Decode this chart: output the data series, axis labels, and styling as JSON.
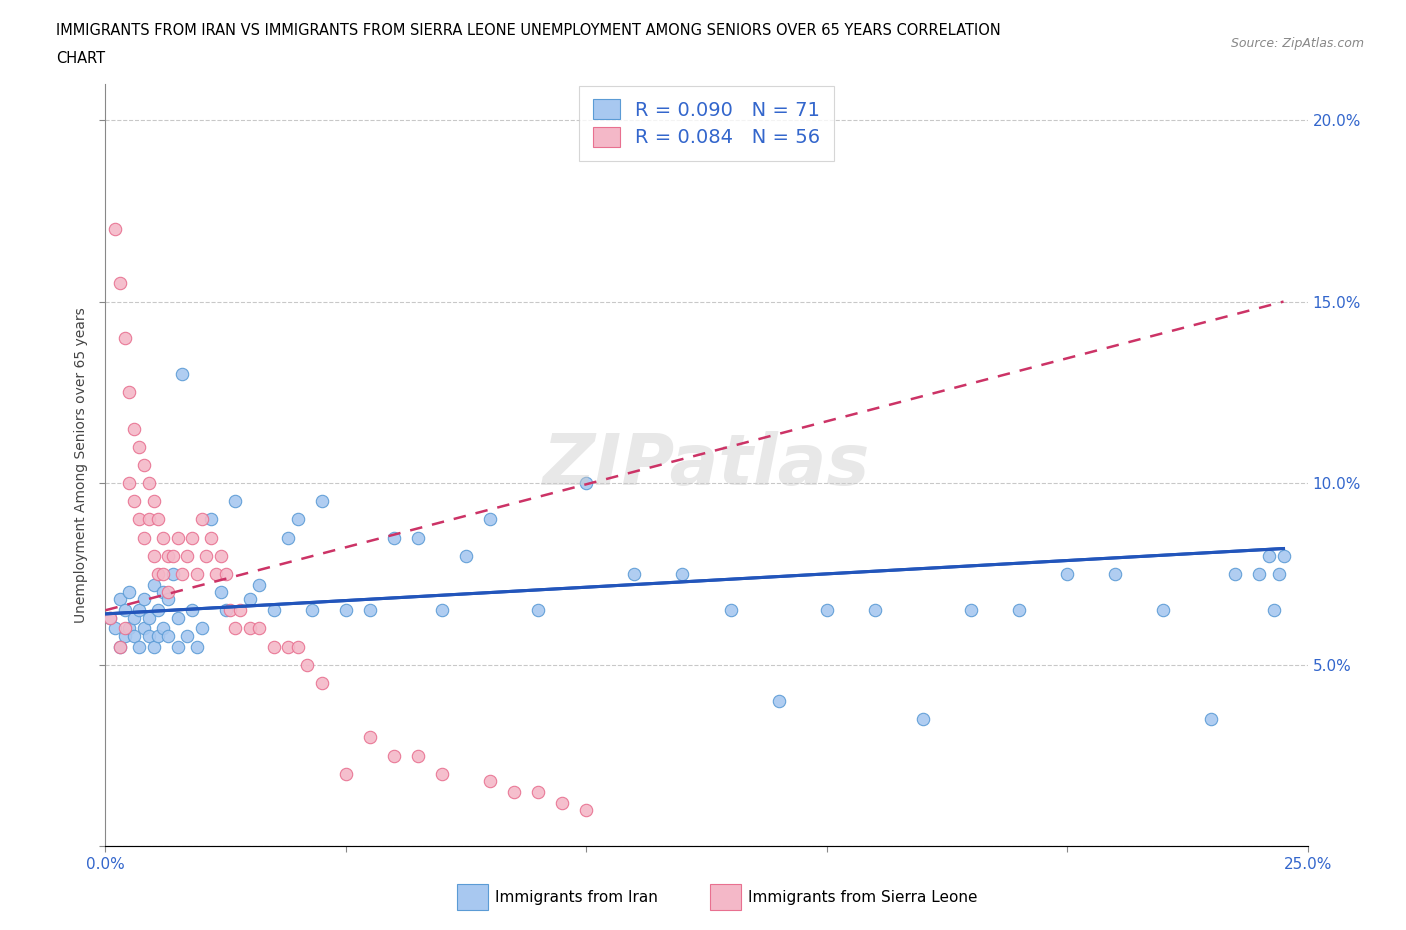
{
  "title_line1": "IMMIGRANTS FROM IRAN VS IMMIGRANTS FROM SIERRA LEONE UNEMPLOYMENT AMONG SENIORS OVER 65 YEARS CORRELATION",
  "title_line2": "CHART",
  "source": "Source: ZipAtlas.com",
  "ylabel": "Unemployment Among Seniors over 65 years",
  "xlim": [
    0.0,
    0.25
  ],
  "ylim": [
    0.0,
    0.21
  ],
  "iran_color": "#a8c8f0",
  "iran_edge": "#5b9bd5",
  "sierra_color": "#f4b8c8",
  "sierra_edge": "#e87090",
  "iran_R": 0.09,
  "iran_N": 71,
  "sierra_R": 0.084,
  "sierra_N": 56,
  "watermark": "ZIPatlas",
  "legend_R_color": "#3366cc",
  "iran_scatter_x": [
    0.001,
    0.002,
    0.003,
    0.003,
    0.004,
    0.004,
    0.005,
    0.005,
    0.006,
    0.006,
    0.007,
    0.007,
    0.008,
    0.008,
    0.009,
    0.009,
    0.01,
    0.01,
    0.011,
    0.011,
    0.012,
    0.012,
    0.013,
    0.013,
    0.014,
    0.015,
    0.015,
    0.016,
    0.017,
    0.018,
    0.019,
    0.02,
    0.022,
    0.024,
    0.025,
    0.027,
    0.03,
    0.032,
    0.035,
    0.038,
    0.04,
    0.043,
    0.045,
    0.05,
    0.055,
    0.06,
    0.065,
    0.07,
    0.075,
    0.08,
    0.09,
    0.1,
    0.11,
    0.12,
    0.13,
    0.14,
    0.15,
    0.16,
    0.17,
    0.18,
    0.19,
    0.2,
    0.21,
    0.22,
    0.23,
    0.235,
    0.24,
    0.242,
    0.243,
    0.244,
    0.245
  ],
  "iran_scatter_y": [
    0.063,
    0.06,
    0.055,
    0.068,
    0.058,
    0.065,
    0.06,
    0.07,
    0.058,
    0.063,
    0.055,
    0.065,
    0.06,
    0.068,
    0.058,
    0.063,
    0.055,
    0.072,
    0.058,
    0.065,
    0.06,
    0.07,
    0.058,
    0.068,
    0.075,
    0.055,
    0.063,
    0.13,
    0.058,
    0.065,
    0.055,
    0.06,
    0.09,
    0.07,
    0.065,
    0.095,
    0.068,
    0.072,
    0.065,
    0.085,
    0.09,
    0.065,
    0.095,
    0.065,
    0.065,
    0.085,
    0.085,
    0.065,
    0.08,
    0.09,
    0.065,
    0.1,
    0.075,
    0.075,
    0.065,
    0.04,
    0.065,
    0.065,
    0.035,
    0.065,
    0.065,
    0.075,
    0.075,
    0.065,
    0.035,
    0.075,
    0.075,
    0.08,
    0.065,
    0.075,
    0.08
  ],
  "sierra_scatter_x": [
    0.001,
    0.002,
    0.003,
    0.003,
    0.004,
    0.004,
    0.005,
    0.005,
    0.006,
    0.006,
    0.007,
    0.007,
    0.008,
    0.008,
    0.009,
    0.009,
    0.01,
    0.01,
    0.011,
    0.011,
    0.012,
    0.012,
    0.013,
    0.013,
    0.014,
    0.015,
    0.016,
    0.017,
    0.018,
    0.019,
    0.02,
    0.021,
    0.022,
    0.023,
    0.024,
    0.025,
    0.026,
    0.027,
    0.028,
    0.03,
    0.032,
    0.035,
    0.038,
    0.04,
    0.042,
    0.045,
    0.05,
    0.055,
    0.06,
    0.065,
    0.07,
    0.08,
    0.085,
    0.09,
    0.095,
    0.1
  ],
  "sierra_scatter_y": [
    0.063,
    0.17,
    0.055,
    0.155,
    0.06,
    0.14,
    0.1,
    0.125,
    0.095,
    0.115,
    0.09,
    0.11,
    0.085,
    0.105,
    0.09,
    0.1,
    0.08,
    0.095,
    0.075,
    0.09,
    0.075,
    0.085,
    0.07,
    0.08,
    0.08,
    0.085,
    0.075,
    0.08,
    0.085,
    0.075,
    0.09,
    0.08,
    0.085,
    0.075,
    0.08,
    0.075,
    0.065,
    0.06,
    0.065,
    0.06,
    0.06,
    0.055,
    0.055,
    0.055,
    0.05,
    0.045,
    0.02,
    0.03,
    0.025,
    0.025,
    0.02,
    0.018,
    0.015,
    0.015,
    0.012,
    0.01
  ]
}
